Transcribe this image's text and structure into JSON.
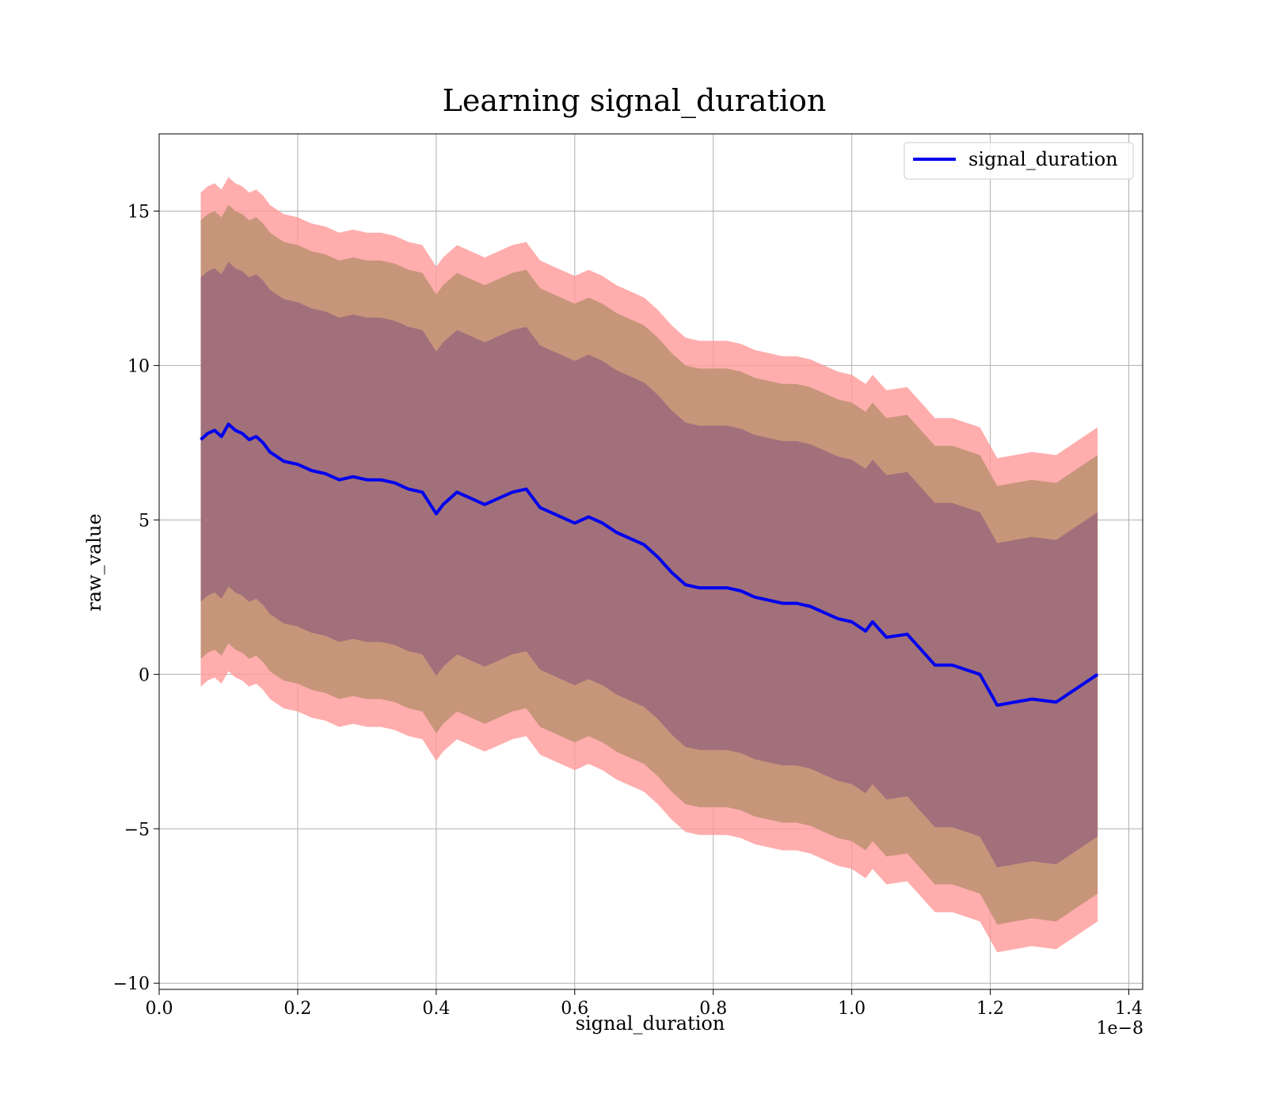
{
  "chart_data": {
    "type": "line",
    "title": "Learning signal_duration",
    "xlabel": "signal_duration",
    "ylabel": "raw_value",
    "x_offset_label": "1e−8",
    "xlim": [
      0.0,
      1.42
    ],
    "ylim": [
      -10.2,
      17.5
    ],
    "x_ticks": [
      0.0,
      0.2,
      0.4,
      0.6,
      0.8,
      1.0,
      1.2,
      1.4
    ],
    "x_tick_labels": [
      "0.0",
      "0.2",
      "0.4",
      "0.6",
      "0.8",
      "1.0",
      "1.2",
      "1.4"
    ],
    "y_ticks": [
      -10,
      -5,
      0,
      5,
      10,
      15
    ],
    "y_tick_labels": [
      "−10",
      "−5",
      "0",
      "5",
      "10",
      "15"
    ],
    "grid": true,
    "legend_position": "top-right",
    "colors": {
      "line": "#0000ee",
      "band_outer": "#ff9999",
      "band_middle": "#c7957a",
      "band_inner": "#a1707b",
      "grid": "#b0b0b0"
    },
    "band_offsets": [
      8.0,
      7.1,
      5.25
    ],
    "series": [
      {
        "name": "signal_duration",
        "x": [
          0.06,
          0.07,
          0.08,
          0.09,
          0.1,
          0.11,
          0.12,
          0.13,
          0.14,
          0.15,
          0.16,
          0.18,
          0.2,
          0.22,
          0.24,
          0.26,
          0.28,
          0.3,
          0.32,
          0.34,
          0.36,
          0.38,
          0.4,
          0.41,
          0.43,
          0.45,
          0.47,
          0.49,
          0.51,
          0.53,
          0.55,
          0.57,
          0.59,
          0.6,
          0.62,
          0.64,
          0.66,
          0.68,
          0.7,
          0.72,
          0.74,
          0.76,
          0.78,
          0.8,
          0.82,
          0.84,
          0.86,
          0.88,
          0.9,
          0.92,
          0.94,
          0.96,
          0.98,
          1.0,
          1.02,
          1.03,
          1.05,
          1.08,
          1.1,
          1.12,
          1.145,
          1.185,
          1.21,
          1.26,
          1.295,
          1.355
        ],
        "values": [
          7.6,
          7.8,
          7.9,
          7.7,
          8.1,
          7.9,
          7.8,
          7.6,
          7.7,
          7.5,
          7.2,
          6.9,
          6.8,
          6.6,
          6.5,
          6.3,
          6.4,
          6.3,
          6.3,
          6.2,
          6.0,
          5.9,
          5.2,
          5.5,
          5.9,
          5.7,
          5.5,
          5.7,
          5.9,
          6.0,
          5.4,
          5.2,
          5.0,
          4.9,
          5.1,
          4.9,
          4.6,
          4.4,
          4.2,
          3.8,
          3.3,
          2.9,
          2.8,
          2.8,
          2.8,
          2.7,
          2.5,
          2.4,
          2.3,
          2.3,
          2.2,
          2.0,
          1.8,
          1.7,
          1.4,
          1.7,
          1.2,
          1.3,
          0.8,
          0.3,
          0.3,
          0.0,
          -1.0,
          -0.8,
          -0.9,
          0.0
        ]
      }
    ]
  }
}
